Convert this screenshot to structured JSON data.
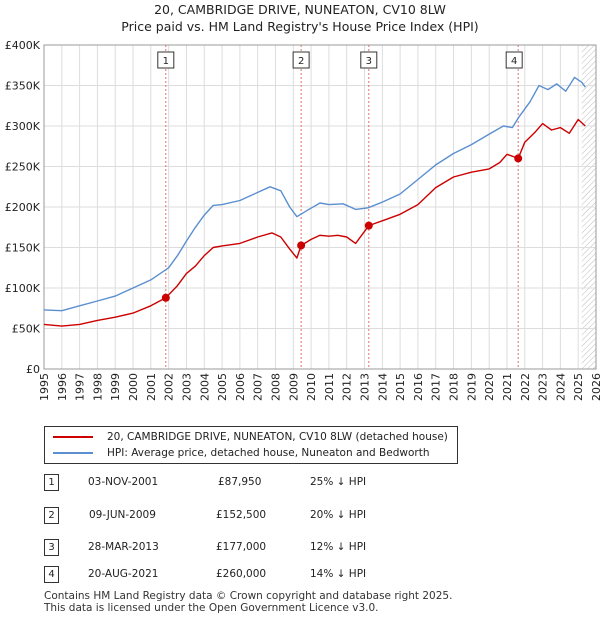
{
  "title_line1": "20, CAMBRIDGE DRIVE, NUNEATON, CV10 8LW",
  "title_line2": "Price paid vs. HM Land Registry's House Price Index (HPI)",
  "colors": {
    "property": "#cc0000",
    "hpi": "#5b8fd0",
    "vline": "#e07070",
    "grid": "#dddddd",
    "hatch": "#bbbbbb"
  },
  "chart_data": {
    "type": "line",
    "title": "20, CAMBRIDGE DRIVE, NUNEATON, CV10 8LW",
    "subtitle": "Price paid vs. HM Land Registry's House Price Index (HPI)",
    "xlabel": "",
    "ylabel": "",
    "xlim": [
      1995,
      2026
    ],
    "ylim": [
      0,
      400000
    ],
    "y_ticks": [
      {
        "value": 0,
        "label": "£0"
      },
      {
        "value": 50000,
        "label": "£50K"
      },
      {
        "value": 100000,
        "label": "£100K"
      },
      {
        "value": 150000,
        "label": "£150K"
      },
      {
        "value": 200000,
        "label": "£200K"
      },
      {
        "value": 250000,
        "label": "£250K"
      },
      {
        "value": 300000,
        "label": "£300K"
      },
      {
        "value": 350000,
        "label": "£350K"
      },
      {
        "value": 400000,
        "label": "£400K"
      }
    ],
    "x_ticks": [
      "1995",
      "1996",
      "1997",
      "1998",
      "1999",
      "2000",
      "2001",
      "2002",
      "2003",
      "2004",
      "2005",
      "2006",
      "2007",
      "2008",
      "2009",
      "2010",
      "2011",
      "2012",
      "2013",
      "2014",
      "2015",
      "2016",
      "2017",
      "2018",
      "2019",
      "2020",
      "2021",
      "2022",
      "2023",
      "2024",
      "2025",
      "2026"
    ],
    "grid": true,
    "forecast_from": 2025.2,
    "series": [
      {
        "name": "20, CAMBRIDGE DRIVE, NUNEATON, CV10 8LW (detached house)",
        "color": "#cc0000",
        "points": [
          [
            1995.0,
            55000
          ],
          [
            1996.0,
            53000
          ],
          [
            1997.0,
            55000
          ],
          [
            1998.0,
            60000
          ],
          [
            1999.0,
            64000
          ],
          [
            2000.0,
            69000
          ],
          [
            2001.0,
            78000
          ],
          [
            2001.84,
            87950
          ],
          [
            2002.5,
            103000
          ],
          [
            2003.0,
            118000
          ],
          [
            2003.5,
            127000
          ],
          [
            2004.0,
            140000
          ],
          [
            2004.5,
            150000
          ],
          [
            2005.0,
            152000
          ],
          [
            2006.0,
            155000
          ],
          [
            2007.0,
            163000
          ],
          [
            2007.8,
            168000
          ],
          [
            2008.3,
            163000
          ],
          [
            2008.8,
            148000
          ],
          [
            2009.2,
            137000
          ],
          [
            2009.44,
            152500
          ],
          [
            2010.0,
            160000
          ],
          [
            2010.5,
            165000
          ],
          [
            2011.0,
            164000
          ],
          [
            2011.5,
            165000
          ],
          [
            2012.0,
            163000
          ],
          [
            2012.5,
            155000
          ],
          [
            2013.24,
            177000
          ],
          [
            2014.0,
            183000
          ],
          [
            2015.0,
            191000
          ],
          [
            2016.0,
            203000
          ],
          [
            2017.0,
            224000
          ],
          [
            2018.0,
            237000
          ],
          [
            2019.0,
            243000
          ],
          [
            2020.0,
            247000
          ],
          [
            2020.6,
            255000
          ],
          [
            2021.0,
            265000
          ],
          [
            2021.63,
            260000
          ],
          [
            2022.0,
            280000
          ],
          [
            2022.6,
            293000
          ],
          [
            2023.0,
            303000
          ],
          [
            2023.5,
            295000
          ],
          [
            2024.0,
            298000
          ],
          [
            2024.5,
            291000
          ],
          [
            2025.0,
            308000
          ],
          [
            2025.4,
            300000
          ]
        ]
      },
      {
        "name": "HPI: Average price, detached house, Nuneaton and Bedworth",
        "color": "#5b8fd0",
        "points": [
          [
            1995.0,
            73000
          ],
          [
            1996.0,
            72000
          ],
          [
            1997.0,
            78000
          ],
          [
            1998.0,
            84000
          ],
          [
            1999.0,
            90000
          ],
          [
            2000.0,
            100000
          ],
          [
            2001.0,
            110000
          ],
          [
            2002.0,
            125000
          ],
          [
            2002.5,
            140000
          ],
          [
            2003.0,
            158000
          ],
          [
            2003.5,
            175000
          ],
          [
            2004.0,
            190000
          ],
          [
            2004.5,
            202000
          ],
          [
            2005.0,
            203000
          ],
          [
            2006.0,
            208000
          ],
          [
            2007.0,
            218000
          ],
          [
            2007.7,
            225000
          ],
          [
            2008.3,
            220000
          ],
          [
            2008.8,
            200000
          ],
          [
            2009.2,
            188000
          ],
          [
            2009.8,
            196000
          ],
          [
            2010.5,
            205000
          ],
          [
            2011.0,
            203000
          ],
          [
            2011.8,
            204000
          ],
          [
            2012.5,
            197000
          ],
          [
            2013.2,
            199000
          ],
          [
            2014.0,
            206000
          ],
          [
            2015.0,
            216000
          ],
          [
            2016.0,
            234000
          ],
          [
            2017.0,
            252000
          ],
          [
            2018.0,
            266000
          ],
          [
            2019.0,
            277000
          ],
          [
            2020.0,
            290000
          ],
          [
            2020.8,
            300000
          ],
          [
            2021.3,
            298000
          ],
          [
            2021.7,
            312000
          ],
          [
            2022.3,
            330000
          ],
          [
            2022.8,
            350000
          ],
          [
            2023.3,
            345000
          ],
          [
            2023.8,
            352000
          ],
          [
            2024.3,
            343000
          ],
          [
            2024.8,
            360000
          ],
          [
            2025.2,
            354000
          ],
          [
            2025.4,
            348000
          ]
        ]
      }
    ],
    "sales": [
      {
        "id": "1",
        "x": 2001.84,
        "price": 87950,
        "date": "03-NOV-2001",
        "price_label": "£87,950",
        "hpi_diff": "25% ↓ HPI"
      },
      {
        "id": "2",
        "x": 2009.44,
        "price": 152500,
        "date": "09-JUN-2009",
        "price_label": "£152,500",
        "hpi_diff": "20% ↓ HPI"
      },
      {
        "id": "3",
        "x": 2013.24,
        "price": 177000,
        "date": "28-MAR-2013",
        "price_label": "£177,000",
        "hpi_diff": "12% ↓ HPI"
      },
      {
        "id": "4",
        "x": 2021.63,
        "price": 260000,
        "date": "20-AUG-2021",
        "price_label": "£260,000",
        "hpi_diff": "14% ↓ HPI"
      }
    ]
  },
  "legend": {
    "property_label": "20, CAMBRIDGE DRIVE, NUNEATON, CV10 8LW (detached house)",
    "hpi_label": "HPI: Average price, detached house, Nuneaton and Bedworth"
  },
  "footer": {
    "line1": "Contains HM Land Registry data © Crown copyright and database right 2025.",
    "line2": "This data is licensed under the Open Government Licence v3.0."
  }
}
